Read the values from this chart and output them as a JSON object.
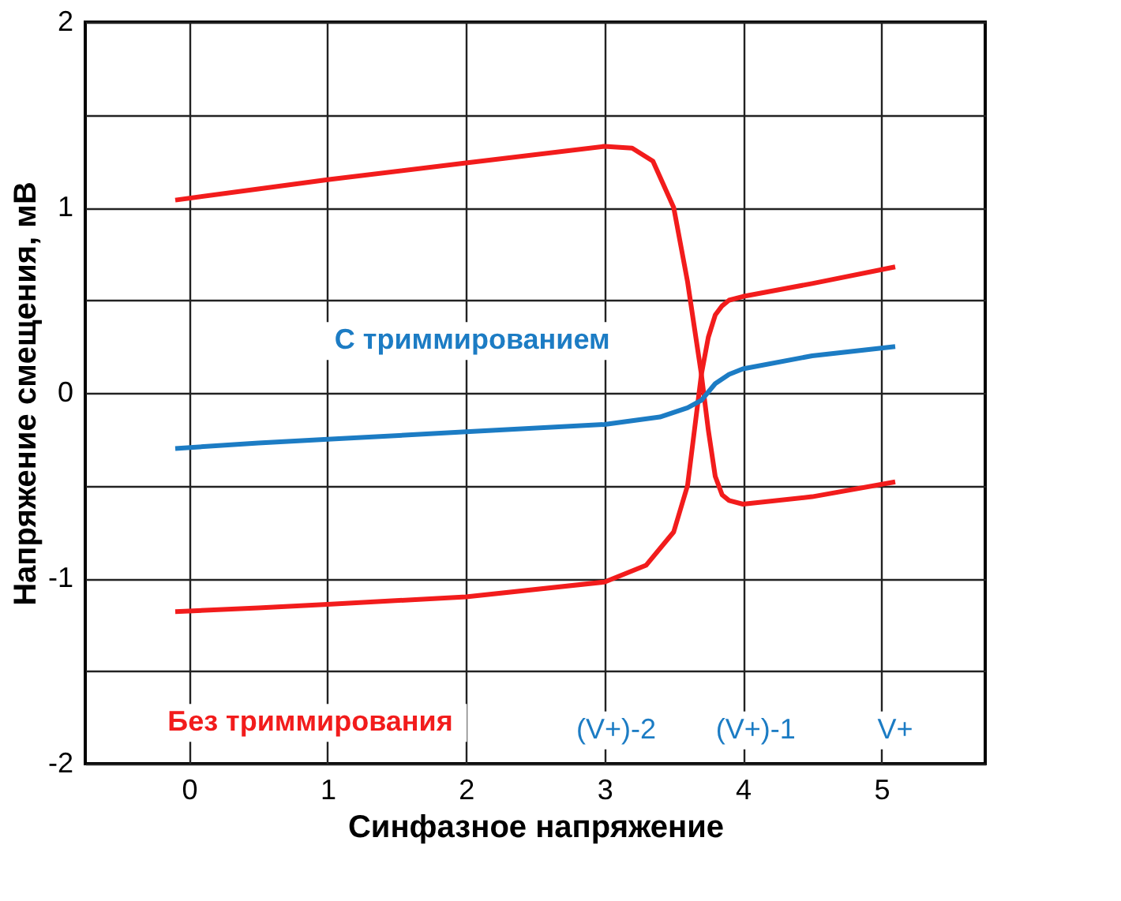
{
  "chart_data": {
    "type": "line",
    "xlabel": "Синфазное напряжение",
    "ylabel": "Напряжение смещения, мВ",
    "xlim": [
      -0.75,
      5.75
    ],
    "xticks": [
      0,
      1,
      2,
      3,
      4,
      5
    ],
    "ylim": [
      -2,
      2
    ],
    "yticks": [
      {
        "value": -2,
        "label": "-2"
      },
      {
        "value": -1.5,
        "label": null
      },
      {
        "value": -1,
        "label": "-1"
      },
      {
        "value": -0.5,
        "label": null
      },
      {
        "value": 0,
        "label": "0"
      },
      {
        "value": 0.5,
        "label": null
      },
      {
        "value": 1,
        "label": "1"
      },
      {
        "value": 1.5,
        "label": null
      },
      {
        "value": 2,
        "label": "2"
      }
    ],
    "grid": true,
    "marker": "none",
    "line_style": "solid",
    "series": [
      {
        "color": "#f21c1c",
        "x": [
          -0.1,
          0.5,
          1,
          2,
          3,
          3.2,
          3.35,
          3.5,
          3.6,
          3.7,
          3.75,
          3.8,
          3.85,
          3.9,
          4,
          4.5,
          5.1
        ],
        "values": [
          1.04,
          1.1,
          1.15,
          1.24,
          1.33,
          1.32,
          1.25,
          1.0,
          0.6,
          0.1,
          -0.2,
          -0.45,
          -0.55,
          -0.58,
          -0.6,
          -0.56,
          -0.48
        ]
      },
      {
        "color": "#f21c1c",
        "x": [
          -0.1,
          0.5,
          1,
          2,
          3,
          3.3,
          3.5,
          3.6,
          3.65,
          3.7,
          3.75,
          3.8,
          3.85,
          3.9,
          4,
          4.5,
          5.1
        ],
        "values": [
          -1.18,
          -1.16,
          -1.14,
          -1.1,
          -1.02,
          -0.93,
          -0.75,
          -0.5,
          -0.2,
          0.1,
          0.3,
          0.42,
          0.47,
          0.5,
          0.52,
          0.59,
          0.68
        ]
      },
      {
        "color": "#1c7cc4",
        "x": [
          -0.1,
          0.5,
          1,
          2,
          3,
          3.4,
          3.6,
          3.7,
          3.8,
          3.9,
          4,
          4.5,
          5.1
        ],
        "values": [
          -0.3,
          -0.27,
          -0.25,
          -0.21,
          -0.17,
          -0.13,
          -0.08,
          -0.04,
          0.05,
          0.1,
          0.13,
          0.2,
          0.25
        ]
      }
    ],
    "annotations": [
      "С триммированием",
      "Без триммирования",
      "(V+)-2",
      "(V+)-1",
      "V+"
    ]
  }
}
